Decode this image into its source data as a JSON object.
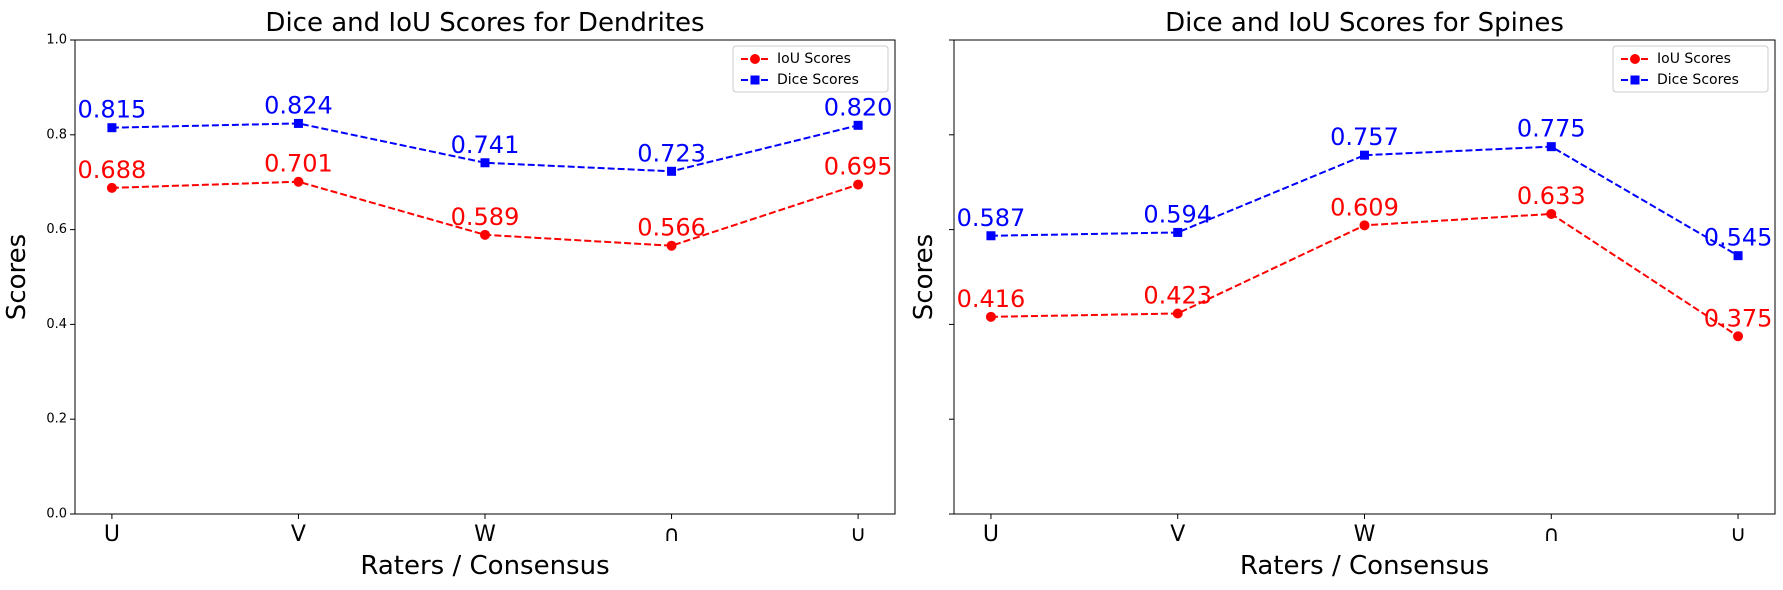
{
  "colors": {
    "iou": "#ff0000",
    "dice": "#0000ff"
  },
  "shared": {
    "ylabel": "Scores",
    "xlabel": "Raters / Consensus",
    "ylim": [
      0,
      1
    ],
    "yticks": [
      "0.0",
      "0.2",
      "0.4",
      "0.6",
      "0.8",
      "1.0"
    ],
    "legend": {
      "placement": "top-right",
      "entries": [
        "IoU Scores",
        "Dice Scores"
      ]
    }
  },
  "chart_data": [
    {
      "type": "line",
      "title": "Dice and IoU Scores for Dendrites",
      "xlabel": "Raters / Consensus",
      "ylabel": "Scores",
      "ylim": [
        0,
        1
      ],
      "grid": false,
      "legend": "top-right",
      "categories": [
        "U",
        "V",
        "W",
        "∩",
        "∪"
      ],
      "series": [
        {
          "name": "IoU Scores",
          "marker": "circle",
          "linestyle": "dashed",
          "values": [
            0.688,
            0.701,
            0.589,
            0.566,
            0.695
          ],
          "labels": [
            "0.688",
            "0.701",
            "0.589",
            "0.566",
            "0.695"
          ]
        },
        {
          "name": "Dice Scores",
          "marker": "square",
          "linestyle": "dashed",
          "values": [
            0.815,
            0.824,
            0.741,
            0.723,
            0.82
          ],
          "labels": [
            "0.815",
            "0.824",
            "0.741",
            "0.723",
            "0.820"
          ]
        }
      ]
    },
    {
      "type": "line",
      "title": "Dice and IoU Scores for Spines",
      "xlabel": "Raters / Consensus",
      "ylabel": "Scores",
      "ylim": [
        0,
        1
      ],
      "grid": false,
      "legend": "top-right",
      "categories": [
        "U",
        "V",
        "W",
        "∩",
        "∪"
      ],
      "series": [
        {
          "name": "IoU Scores",
          "marker": "circle",
          "linestyle": "dashed",
          "values": [
            0.416,
            0.423,
            0.609,
            0.633,
            0.375
          ],
          "labels": [
            "0.416",
            "0.423",
            "0.609",
            "0.633",
            "0.375"
          ]
        },
        {
          "name": "Dice Scores",
          "marker": "square",
          "linestyle": "dashed",
          "values": [
            0.587,
            0.594,
            0.757,
            0.775,
            0.545
          ],
          "labels": [
            "0.587",
            "0.594",
            "0.757",
            "0.775",
            "0.545"
          ]
        }
      ]
    }
  ]
}
